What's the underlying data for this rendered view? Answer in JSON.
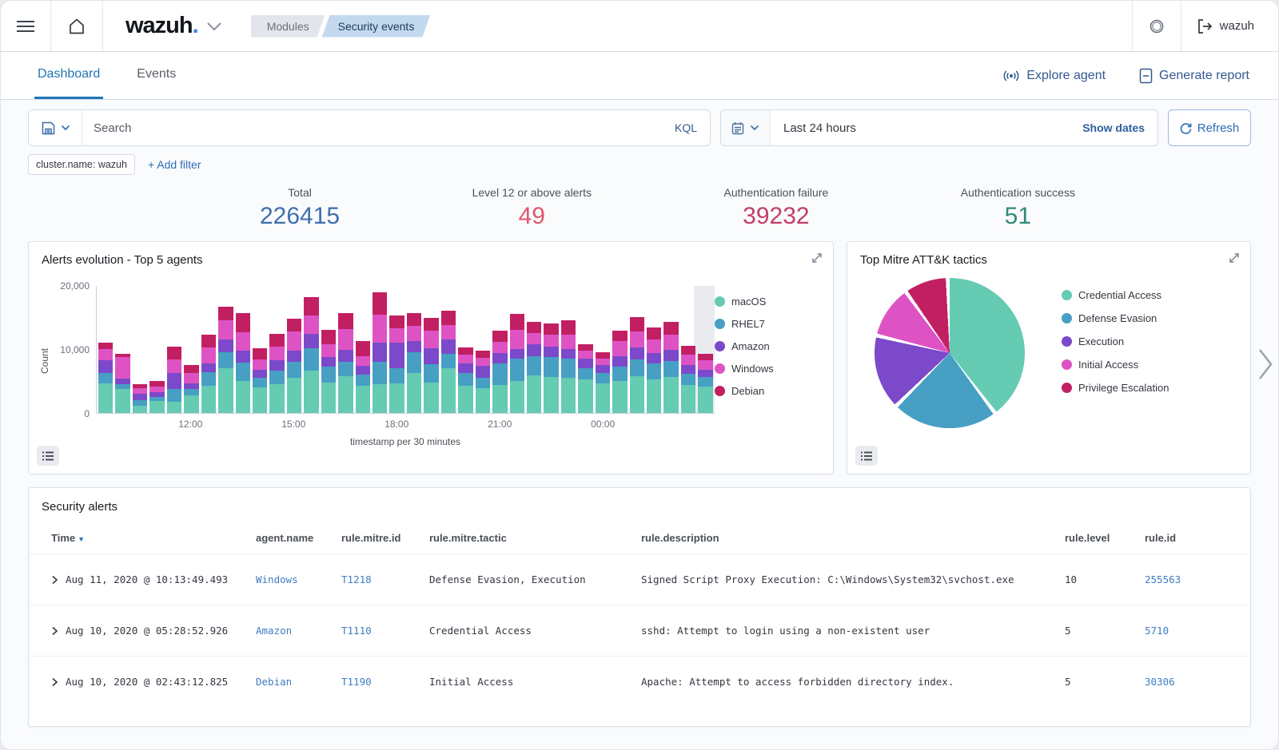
{
  "header": {
    "logo_text": "wazuh",
    "logo_dot": ".",
    "breadcrumbs": [
      {
        "label": "Modules"
      },
      {
        "label": "Security events"
      }
    ],
    "user_label": "wazuh",
    "icons": {
      "menu": "hamburger-icon",
      "home": "home-icon",
      "health": "ring-icon",
      "logout": "exit-icon"
    }
  },
  "tabs": [
    {
      "label": "Dashboard",
      "active": true
    },
    {
      "label": "Events",
      "active": false
    }
  ],
  "actions": {
    "explore_agent": "Explore agent",
    "generate_report": "Generate report"
  },
  "query_bar": {
    "search_placeholder": "Search",
    "kql_label": "KQL",
    "time_range": "Last 24 hours",
    "show_dates_label": "Show dates",
    "refresh_label": "Refresh"
  },
  "filters": {
    "chip": "cluster.name: wazuh",
    "add_filter_label": "+ Add filter"
  },
  "stats": [
    {
      "label": "Total",
      "value": "226415",
      "color": "#3e6fad"
    },
    {
      "label": "Level 12 or above alerts",
      "value": "49",
      "color": "#e0566c"
    },
    {
      "label": "Authentication failure",
      "value": "39232",
      "color": "#c13e6b"
    },
    {
      "label": "Authentication success",
      "value": "51",
      "color": "#2f8a7a"
    }
  ],
  "panels": {
    "alerts_evolution_title": "Alerts evolution - Top 5 agents",
    "mitre_title": "Top Mitre ATT&K tactics",
    "table_title": "Security alerts"
  },
  "chart_data": [
    {
      "type": "bar",
      "title": "Alerts evolution - Top 5 agents",
      "xlabel": "timestamp per 30 minutes",
      "ylabel": "Count",
      "ylim": [
        0,
        20000
      ],
      "y_ticks": [
        "0",
        "10,000",
        "20,000"
      ],
      "x_ticks": [
        {
          "label": "12:00",
          "index": 5
        },
        {
          "label": "15:00",
          "index": 11
        },
        {
          "label": "18:00",
          "index": 17
        },
        {
          "label": "21:00",
          "index": 23
        },
        {
          "label": "00:00",
          "index": 29
        }
      ],
      "slots": 36,
      "legend_position": "right",
      "series": [
        {
          "name": "macOS",
          "color": "#65cbb3",
          "values": [
            4600,
            3800,
            1100,
            1900,
            1800,
            2700,
            4200,
            7000,
            5000,
            4000,
            4500,
            5500,
            6600,
            4800,
            5800,
            4300,
            4500,
            4600,
            6300,
            4800,
            7000,
            4200,
            3900,
            4400,
            5000,
            5900,
            5600,
            5500,
            5200,
            4600,
            5000,
            5800,
            5300,
            5600,
            4400,
            4100
          ]
        },
        {
          "name": "RHEL7",
          "color": "#479fc4",
          "values": [
            1600,
            700,
            900,
            600,
            2000,
            1100,
            2200,
            2500,
            2900,
            1500,
            2100,
            2500,
            3500,
            2400,
            2200,
            1700,
            3500,
            2400,
            3200,
            2800,
            2200,
            2100,
            1600,
            3400,
            3500,
            3000,
            3200,
            3000,
            1800,
            1600,
            2300,
            2600,
            2400,
            2500,
            1700,
            1500
          ]
        },
        {
          "name": "Amazon",
          "color": "#7b49ca",
          "values": [
            2000,
            900,
            1000,
            700,
            2400,
            800,
            1300,
            2000,
            1900,
            1300,
            1600,
            1800,
            2300,
            1500,
            1900,
            1400,
            3000,
            4000,
            1700,
            2500,
            2300,
            1500,
            1900,
            1600,
            1500,
            1800,
            1600,
            1500,
            1500,
            1300,
            1600,
            1800,
            1700,
            1800,
            1400,
            1200
          ]
        },
        {
          "name": "Windows",
          "color": "#de53c4",
          "values": [
            1800,
            3300,
            900,
            900,
            2200,
            1600,
            2600,
            3000,
            2800,
            1600,
            2200,
            2900,
            2800,
            2000,
            3200,
            1500,
            4400,
            2200,
            2400,
            2800,
            2300,
            1300,
            1200,
            1700,
            3000,
            1800,
            1900,
            2300,
            1200,
            1000,
            2400,
            2600,
            2100,
            2400,
            1600,
            1400
          ]
        },
        {
          "name": "Debian",
          "color": "#c21f63",
          "values": [
            1000,
            500,
            600,
            900,
            2000,
            1300,
            2000,
            2100,
            3000,
            1700,
            2000,
            2000,
            2900,
            2300,
            2500,
            2300,
            3500,
            2100,
            2000,
            2000,
            2200,
            1200,
            1100,
            1800,
            2500,
            1800,
            1700,
            2200,
            1000,
            1000,
            1600,
            2200,
            1900,
            1900,
            1400,
            1100
          ]
        }
      ]
    },
    {
      "type": "pie",
      "title": "Top Mitre ATT&K tactics",
      "legend_position": "right",
      "values": [
        {
          "label": "Credential Access",
          "color": "#65cbb3",
          "value": 41
        },
        {
          "label": "Defense Evasion",
          "color": "#479fc4",
          "value": 23
        },
        {
          "label": "Execution",
          "color": "#7b49ca",
          "value": 16
        },
        {
          "label": "Initial Access",
          "color": "#de53c4",
          "value": 11
        },
        {
          "label": "Privilege Escalation",
          "color": "#c21f63",
          "value": 9
        }
      ]
    }
  ],
  "table": {
    "title": "Security alerts",
    "columns": [
      "Time",
      "agent.name",
      "rule.mitre.id",
      "rule.mitre.tactic",
      "rule.description",
      "rule.level",
      "rule.id"
    ],
    "sorted_column": "Time",
    "rows": [
      {
        "time": "Aug 11, 2020 @ 10:13:49.493",
        "agent": "Windows",
        "mitre_id": "T1218",
        "mitre_tactic": "Defense Evasion, Execution",
        "description": "Signed Script Proxy Execution: C:\\Windows\\System32\\svchost.exe",
        "level": "10",
        "rule_id": "255563"
      },
      {
        "time": "Aug 10, 2020 @ 05:28:52.926",
        "agent": "Amazon",
        "mitre_id": "T1110",
        "mitre_tactic": "Credential Access",
        "description": "sshd: Attempt to login using a non-existent user",
        "level": "5",
        "rule_id": "5710"
      },
      {
        "time": "Aug 10, 2020 @ 02:43:12.825",
        "agent": "Debian",
        "mitre_id": "T1190",
        "mitre_tactic": "Initial Access",
        "description": "Apache: Attempt to access forbidden directory index.",
        "level": "5",
        "rule_id": "30306"
      }
    ]
  }
}
